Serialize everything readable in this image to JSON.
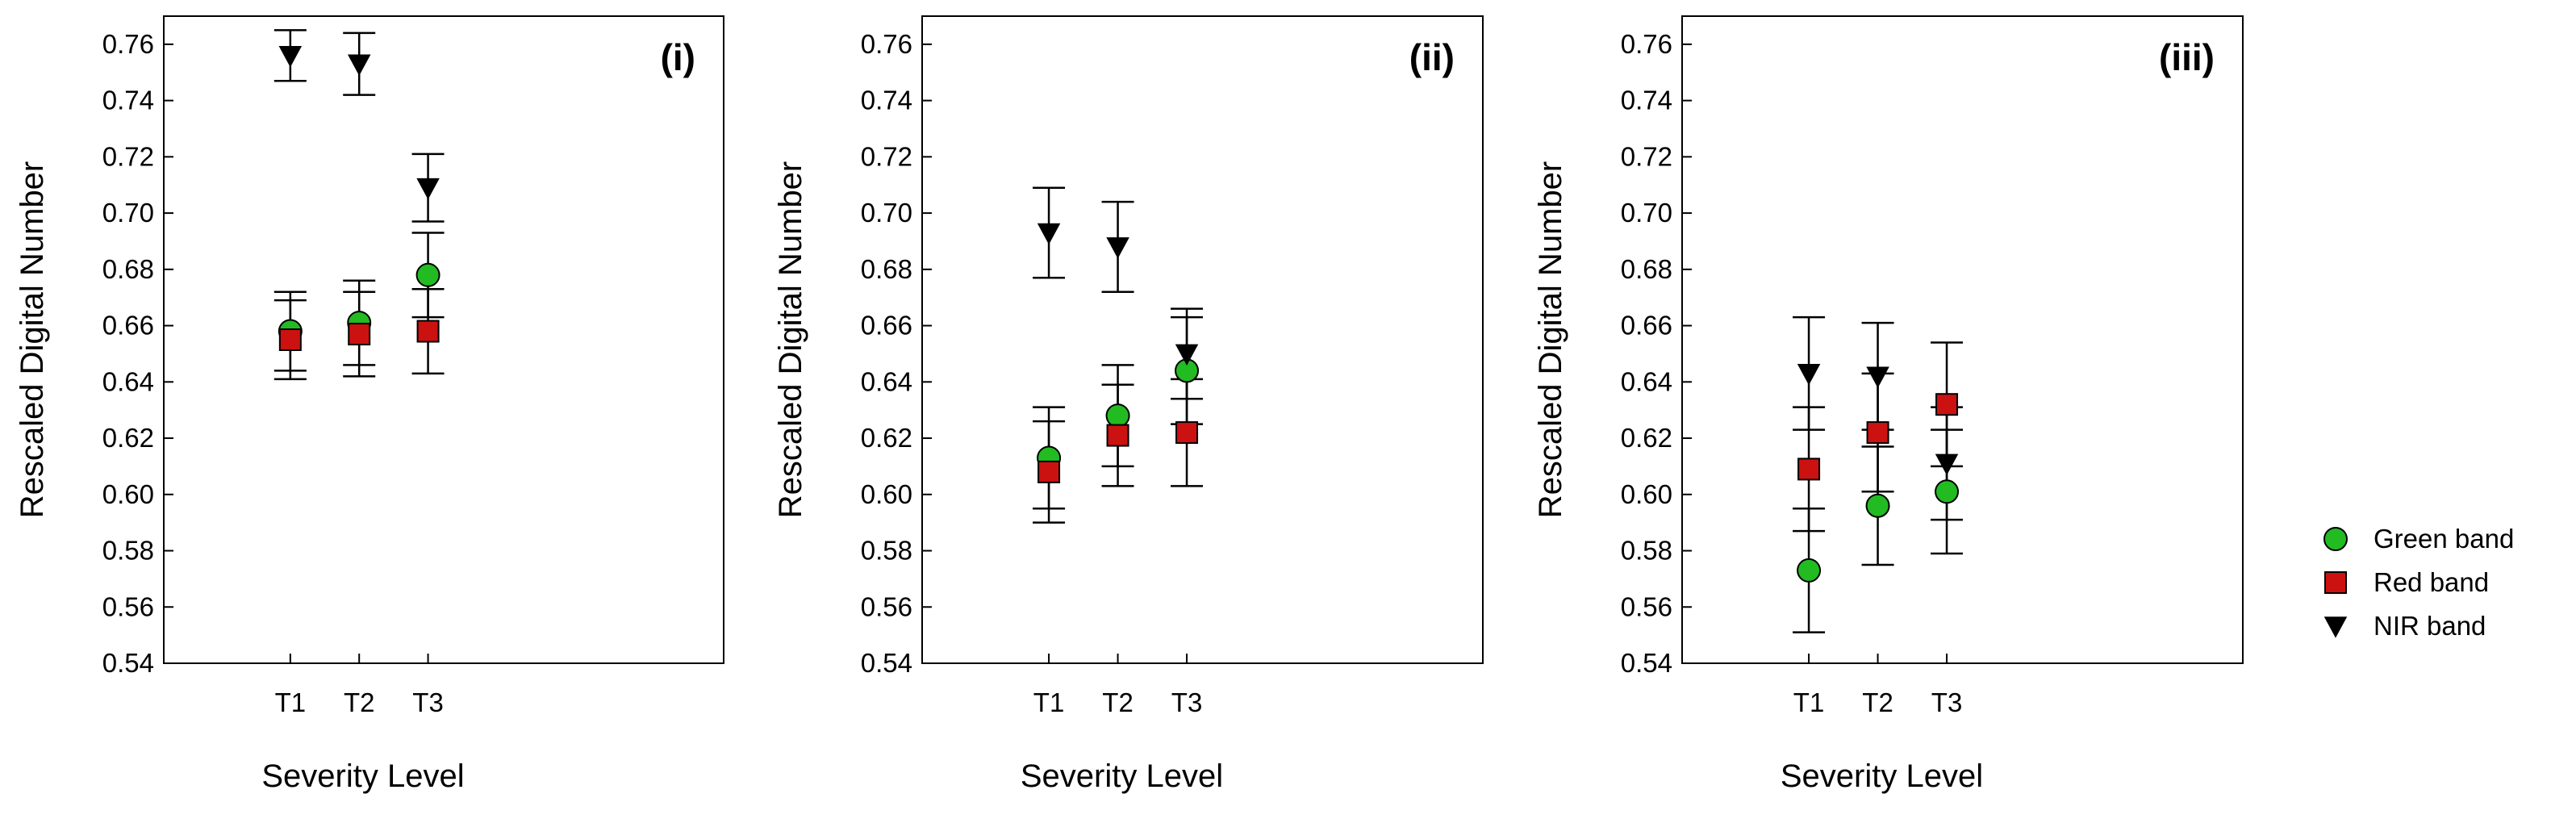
{
  "chart_data": {
    "type": "scatter",
    "ylabel": "Rescaled Digital Number",
    "xlabel": "Severity Level",
    "categories": [
      "T1",
      "T2",
      "T3"
    ],
    "ylim": [
      0.54,
      0.77
    ],
    "yticks": [
      0.54,
      0.56,
      0.58,
      0.6,
      0.62,
      0.64,
      0.66,
      0.68,
      0.7,
      0.72,
      0.74,
      0.76
    ],
    "ytick_labels": [
      "0.54",
      "0.56",
      "0.58",
      "0.60",
      "0.62",
      "0.64",
      "0.66",
      "0.68",
      "0.70",
      "0.72",
      "0.74",
      "0.76"
    ],
    "legend": [
      {
        "name": "Green band",
        "marker": "circle",
        "color": "#22bb22"
      },
      {
        "name": "Red band",
        "marker": "square",
        "color": "#cc1111"
      },
      {
        "name": "NIR band",
        "marker": "triangle-down",
        "color": "#000000"
      }
    ],
    "panels": [
      {
        "label": "(i)",
        "series": [
          {
            "name": "Green band",
            "values": [
              0.658,
              0.661,
              0.678
            ],
            "errors": [
              0.014,
              0.015,
              0.015
            ]
          },
          {
            "name": "Red band",
            "values": [
              0.655,
              0.657,
              0.658
            ],
            "errors": [
              0.014,
              0.015,
              0.015
            ]
          },
          {
            "name": "NIR band",
            "values": [
              0.756,
              0.753,
              0.709
            ],
            "errors": [
              0.009,
              0.011,
              0.012
            ]
          }
        ]
      },
      {
        "label": "(ii)",
        "series": [
          {
            "name": "Green band",
            "values": [
              0.613,
              0.628,
              0.644
            ],
            "errors": [
              0.018,
              0.018,
              0.019
            ]
          },
          {
            "name": "Red band",
            "values": [
              0.608,
              0.621,
              0.622
            ],
            "errors": [
              0.018,
              0.018,
              0.019
            ]
          },
          {
            "name": "NIR band",
            "values": [
              0.693,
              0.688,
              0.65
            ],
            "errors": [
              0.016,
              0.016,
              0.016
            ]
          }
        ]
      },
      {
        "label": "(iii)",
        "series": [
          {
            "name": "Green band",
            "values": [
              0.573,
              0.596,
              0.601
            ],
            "errors": [
              0.022,
              0.021,
              0.022
            ]
          },
          {
            "name": "Red band",
            "values": [
              0.609,
              0.622,
              0.632
            ],
            "errors": [
              0.022,
              0.021,
              0.022
            ]
          },
          {
            "name": "NIR band",
            "values": [
              0.643,
              0.642,
              0.611
            ],
            "errors": [
              0.02,
              0.019,
              0.02
            ]
          }
        ]
      }
    ]
  }
}
